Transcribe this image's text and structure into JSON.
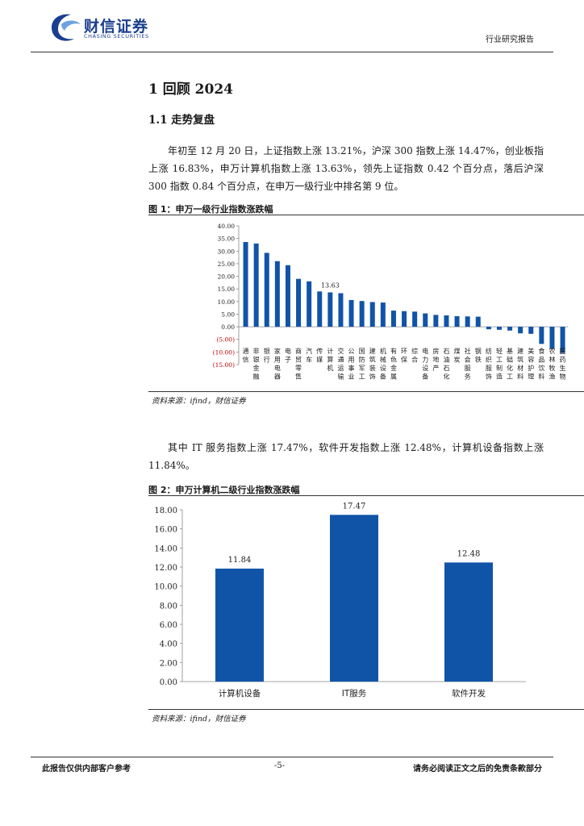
{
  "header": {
    "logo_cn": "财信证券",
    "logo_en": "CHASING SECURITIES",
    "report_type": "行业研究报告"
  },
  "section": {
    "h1": "1 回顾 2024",
    "h2": "1.1 走势复盘",
    "para1": "年初至 12 月 20 日，上证指数上涨 13.21%，沪深 300 指数上涨 14.47%，创业板指上涨 16.83%，申万计算机指数上涨 13.63%，领先上证指数 0.42 个百分点，落后沪深 300 指数 0.84 个百分点，在申万一级行业中排名第 9 位。",
    "para2": "其中 IT 服务指数上涨 17.47%，软件开发指数上涨 12.48%，计算机设备指数上涨 11.84%。"
  },
  "figure1": {
    "title": "图 1：申万一级行业指数涨跌幅",
    "source": "资料来源：ifind，财信证券"
  },
  "figure2": {
    "title": "图 2：申万计算机二级行业指数涨跌幅",
    "source": "资料来源：ifind，财信证券"
  },
  "footer": {
    "left": "此报告仅供内部客户参考",
    "page": "-5-",
    "right": "请务必阅读正文之后的免责条款部分"
  },
  "colors": {
    "bar": "#1054a8",
    "negative_tick": "#c00000",
    "brand": "#1b3f8f"
  },
  "chart_data": [
    {
      "type": "bar",
      "categories": [
        "通信",
        "非银金融",
        "银行",
        "家用电器",
        "电子",
        "商贸零售",
        "汽车",
        "传媒",
        "计算机",
        "交通运输",
        "公用事业",
        "国防军工",
        "建筑装饰",
        "机械设备",
        "有色金属",
        "环保",
        "综合",
        "电力设备",
        "房地产",
        "石油石化",
        "煤炭",
        "社会服务",
        "钢铁",
        "纺织服饰",
        "轻工制造",
        "基础化工",
        "建筑材料",
        "美容护理",
        "食品饮料",
        "农林牧渔",
        "医药生物"
      ],
      "values": [
        33.6,
        33.0,
        29.3,
        26.0,
        24.4,
        19.0,
        18.0,
        14.0,
        13.63,
        13.3,
        10.6,
        10.2,
        9.8,
        9.6,
        6.4,
        6.2,
        6.0,
        5.3,
        4.7,
        4.5,
        4.2,
        4.1,
        4.0,
        -1.0,
        -1.2,
        -1.5,
        -2.6,
        -2.8,
        -6.8,
        -8.8,
        -10.4
      ],
      "data_labels": [
        {
          "category": "计算机",
          "text": "13.63"
        }
      ],
      "yticks": [
        "40.00",
        "35.00",
        "30.00",
        "25.00",
        "20.00",
        "15.00",
        "10.00",
        "5.00",
        "0.00",
        "(5.00)",
        "(10.00)",
        "(15.00)"
      ],
      "ylim": [
        -15,
        40
      ],
      "grid": false
    },
    {
      "type": "bar",
      "categories": [
        "计算机设备",
        "IT服务",
        "软件开发"
      ],
      "values": [
        11.84,
        17.47,
        12.48
      ],
      "data_labels": [
        "11.84",
        "17.47",
        "12.48"
      ],
      "yticks": [
        "18.00",
        "16.00",
        "14.00",
        "12.00",
        "10.00",
        "8.00",
        "6.00",
        "4.00",
        "2.00",
        "0.00"
      ],
      "ylim": [
        0,
        18
      ],
      "grid": false
    }
  ]
}
